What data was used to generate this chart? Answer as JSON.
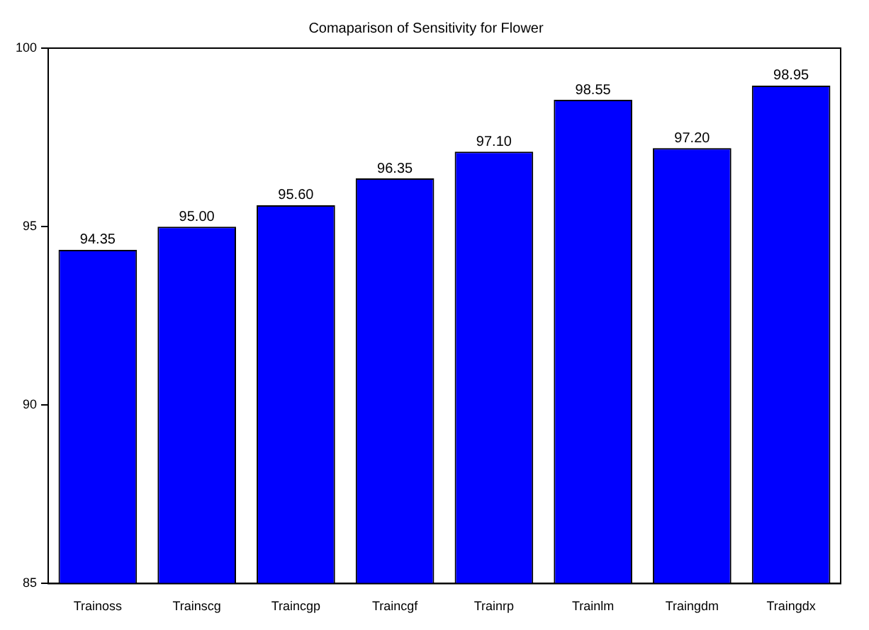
{
  "chart_data": {
    "type": "bar",
    "title": "Comaparison of Sensitivity for Flower",
    "categories": [
      "Trainoss",
      "Trainscg",
      "Traincgp",
      "Traincgf",
      "Trainrp",
      "Trainlm",
      "Traingdm",
      "Traingdx"
    ],
    "values": [
      94.35,
      95.0,
      95.6,
      96.35,
      97.1,
      98.55,
      97.2,
      98.95
    ],
    "value_labels": [
      "94.35",
      "95.00",
      "95.60",
      "96.35",
      "97.10",
      "98.55",
      "97.20",
      "98.95"
    ],
    "color": "#0000ff",
    "ylim": [
      85,
      100
    ],
    "yticks": [
      85,
      90,
      95,
      100
    ],
    "grid": false,
    "legend": false
  }
}
